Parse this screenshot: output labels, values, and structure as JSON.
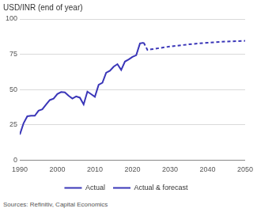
{
  "chart_data": {
    "type": "line",
    "title": "USD/INR (end of year)",
    "source": "Sources: Refinitiv, Capital Economics",
    "xlim": [
      1990,
      2050
    ],
    "xticks": [
      1990,
      2000,
      2010,
      2020,
      2030,
      2040,
      2050
    ],
    "ylim": [
      0,
      100
    ],
    "yticks": [
      0,
      25,
      50,
      75,
      100
    ],
    "grid": true,
    "legend": "bottom",
    "series": [
      {
        "name": "Actual",
        "color": "#3a36b8",
        "line_style": "solid",
        "x": [
          1990,
          1991,
          1992,
          1993,
          1994,
          1995,
          1996,
          1997,
          1998,
          1999,
          2000,
          2001,
          2002,
          2003,
          2004,
          2005,
          2006,
          2007,
          2008,
          2009,
          2010,
          2011,
          2012,
          2013,
          2014,
          2015,
          2016,
          2017,
          2018,
          2019,
          2020,
          2021,
          2022,
          2023
        ],
        "values": [
          18,
          26,
          31,
          31.4,
          31.4,
          35,
          35.9,
          39.3,
          42.5,
          43.5,
          46.8,
          48.2,
          48,
          45.6,
          43.6,
          45.1,
          44.2,
          39.4,
          48.5,
          46.7,
          44.8,
          53.3,
          54.8,
          61.9,
          63.3,
          66.2,
          68,
          63.9,
          69.8,
          71.3,
          73.1,
          74.3,
          82.7,
          83.2
        ]
      },
      {
        "name": "Actual & forecast",
        "color": "#3a36b8",
        "line_style": "dashed",
        "x": [
          2023,
          2024,
          2025,
          2030,
          2035,
          2040,
          2045,
          2050
        ],
        "values": [
          83.2,
          78,
          78.5,
          80.5,
          82,
          83.2,
          84,
          84.5
        ]
      }
    ]
  }
}
